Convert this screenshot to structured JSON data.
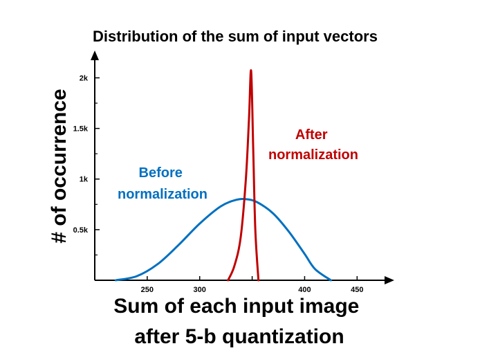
{
  "chart_data": {
    "type": "line",
    "title": "Distribution of the sum of input vectors",
    "xlabel_lines": [
      "Sum of each input image",
      "after 5-b quantization"
    ],
    "ylabel": "# of occurrence",
    "xlim": [
      200,
      490
    ],
    "ylim": [
      0,
      2270
    ],
    "x_ticks": [
      250,
      300,
      350,
      400,
      450
    ],
    "x_tick_labels": [
      "250",
      "300",
      "",
      "400",
      "450"
    ],
    "y_ticks": [
      500,
      1000,
      1500,
      2000
    ],
    "y_tick_labels": [
      "0.5k",
      "1k",
      "1.5k",
      "2k"
    ],
    "grid": false,
    "series": [
      {
        "name": "Before normalization",
        "label_lines": [
          "Before",
          "normalization"
        ],
        "color": "#0070c0",
        "x": [
          220,
          240,
          260,
          280,
          300,
          320,
          335,
          345,
          355,
          370,
          385,
          400,
          410,
          425
        ],
        "y": [
          0,
          40,
          160,
          350,
          560,
          730,
          795,
          800,
          770,
          660,
          480,
          260,
          110,
          0
        ]
      },
      {
        "name": "After normalization",
        "label_lines": [
          "After",
          "normalization"
        ],
        "color": "#c00000",
        "x": [
          327,
          333,
          339,
          344,
          347,
          349,
          351,
          353,
          356
        ],
        "y": [
          0,
          140,
          420,
          1000,
          1600,
          2070,
          1300,
          500,
          0
        ]
      }
    ]
  }
}
